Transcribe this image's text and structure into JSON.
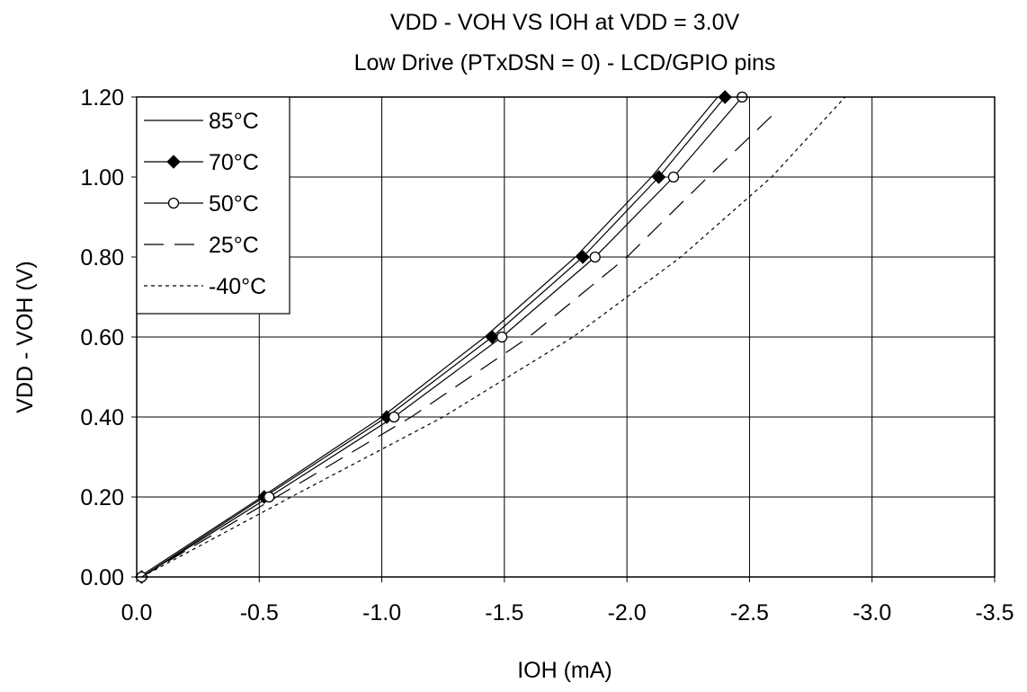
{
  "chart_data": {
    "type": "line",
    "title": "VDD - VOH VS IOH at VDD = 3.0V",
    "subtitle": "Low Drive (PTxDSN = 0) - LCD/GPIO pins",
    "xlabel": "IOH (mA)",
    "ylabel": "VDD - VOH (V)",
    "xlim": [
      0,
      -3.5
    ],
    "ylim": [
      0,
      1.2
    ],
    "xticks": [
      0,
      -0.5,
      -1.0,
      -1.5,
      -2.0,
      -2.5,
      -3.0,
      -3.5
    ],
    "xtick_labels": [
      "0.0",
      "-0.5",
      "-1.0",
      "-1.5",
      "-2.0",
      "-2.5",
      "-3.0",
      "-3.5"
    ],
    "yticks": [
      0,
      0.2,
      0.4,
      0.6,
      0.8,
      1.0,
      1.2
    ],
    "ytick_labels": [
      "0.00",
      "0.20",
      "0.40",
      "0.60",
      "0.80",
      "1.00",
      "1.20"
    ],
    "grid": true,
    "legend_position": "top-left",
    "series": [
      {
        "name": "85°C",
        "style": "solid",
        "marker": "none",
        "color": "#000000",
        "points": [
          [
            -0.01,
            0.0
          ],
          [
            -0.51,
            0.2
          ],
          [
            -1.0,
            0.4
          ],
          [
            -1.42,
            0.6
          ],
          [
            -1.79,
            0.8
          ],
          [
            -2.1,
            1.0
          ],
          [
            -2.37,
            1.2
          ]
        ]
      },
      {
        "name": "70°C",
        "style": "solid",
        "marker": "filled-diamond",
        "color": "#000000",
        "points": [
          [
            -0.02,
            0.0
          ],
          [
            -0.52,
            0.2
          ],
          [
            -1.02,
            0.4
          ],
          [
            -1.45,
            0.6
          ],
          [
            -1.82,
            0.8
          ],
          [
            -2.13,
            1.0
          ],
          [
            -2.4,
            1.2
          ]
        ]
      },
      {
        "name": "50°C",
        "style": "solid",
        "marker": "open-circle",
        "color": "#000000",
        "points": [
          [
            -0.02,
            0.0
          ],
          [
            -0.54,
            0.2
          ],
          [
            -1.05,
            0.4
          ],
          [
            -1.49,
            0.6
          ],
          [
            -1.87,
            0.8
          ],
          [
            -2.19,
            1.0
          ],
          [
            -2.47,
            1.2
          ]
        ]
      },
      {
        "name": "25°C",
        "style": "long-dash",
        "marker": "none",
        "color": "#000000",
        "points": [
          [
            -0.02,
            0.0
          ],
          [
            -0.57,
            0.2
          ],
          [
            -1.12,
            0.4
          ],
          [
            -1.6,
            0.6
          ],
          [
            -2.0,
            0.8
          ],
          [
            -2.33,
            1.0
          ],
          [
            -2.62,
            1.17
          ]
        ]
      },
      {
        "name": "-40°C",
        "style": "short-dash",
        "marker": "none",
        "color": "#000000",
        "points": [
          [
            -0.02,
            0.0
          ],
          [
            -0.63,
            0.2
          ],
          [
            -1.25,
            0.4
          ],
          [
            -1.78,
            0.6
          ],
          [
            -2.22,
            0.8
          ],
          [
            -2.59,
            1.0
          ],
          [
            -2.89,
            1.2
          ]
        ]
      }
    ]
  }
}
